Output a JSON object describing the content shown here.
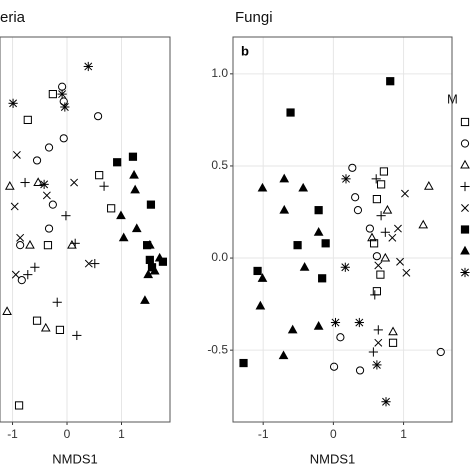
{
  "chart_data": [
    {
      "type": "scatter",
      "title": "eria",
      "xlabel": "NMDS1",
      "xlim": [
        -1.23,
        1.89
      ],
      "ylim": [
        -0.89,
        1.2
      ],
      "xticks": [
        -1,
        0,
        1
      ],
      "grid": true,
      "series": [
        {
          "shape": "square-open",
          "color": "#000000",
          "x": [
            -0.72,
            -0.26,
            -0.35,
            -0.55,
            -0.13,
            0.59,
            -0.88,
            0.81
          ],
          "values": [
            0.75,
            0.89,
            0.07,
            -0.34,
            -0.39,
            0.45,
            -0.8,
            0.27
          ]
        },
        {
          "shape": "circle-open",
          "color": "#000000",
          "x": [
            -0.09,
            -0.06,
            0.57,
            -0.06,
            -0.33,
            -0.55,
            -0.26,
            -0.33,
            -0.86,
            -0.83
          ],
          "values": [
            0.93,
            0.85,
            0.77,
            0.65,
            0.6,
            0.53,
            0.29,
            0.16,
            0.07,
            -0.12
          ]
        },
        {
          "shape": "triangle-open",
          "color": "#000000",
          "x": [
            -1.05,
            -0.53,
            -0.68,
            -0.39,
            -1.1,
            0.09
          ],
          "values": [
            0.39,
            0.41,
            0.07,
            -0.38,
            -0.29,
            0.07
          ]
        },
        {
          "shape": "plus",
          "color": "#000000",
          "x": [
            -0.77,
            0.15,
            -0.02,
            0.51,
            -0.72,
            -0.59,
            -0.18,
            0.18,
            0.68
          ],
          "values": [
            0.41,
            0.08,
            0.23,
            -0.03,
            -0.09,
            -0.05,
            -0.24,
            -0.42,
            0.39
          ]
        },
        {
          "shape": "cross",
          "color": "#000000",
          "x": [
            -0.92,
            -0.96,
            -0.86,
            -0.94,
            0.13,
            0.4,
            -0.37
          ],
          "values": [
            0.56,
            0.28,
            0.11,
            -0.09,
            0.41,
            -0.03,
            0.34
          ]
        },
        {
          "shape": "square-filled",
          "color": "#000000",
          "x": [
            0.92,
            1.21,
            1.54,
            1.47,
            1.52,
            1.56,
            1.76
          ],
          "values": [
            0.52,
            0.55,
            0.29,
            0.07,
            -0.01,
            -0.05,
            -0.02
          ]
        },
        {
          "shape": "triangle-filled",
          "color": "#000000",
          "x": [
            1.23,
            1.25,
            0.99,
            1.04,
            1.28,
            1.52,
            1.7,
            1.49,
            1.43,
            1.61
          ],
          "values": [
            0.45,
            0.37,
            0.23,
            0.11,
            0.16,
            0.07,
            0.0,
            -0.09,
            -0.23,
            -0.07
          ]
        },
        {
          "shape": "asterisk",
          "color": "#000000",
          "x": [
            0.39,
            -0.99,
            -0.09,
            -0.04,
            -0.42
          ],
          "values": [
            1.04,
            0.84,
            0.89,
            0.82,
            0.4
          ]
        }
      ]
    },
    {
      "type": "scatter",
      "title": "Fungi",
      "panel_label": "b",
      "xlabel": "NMDS1",
      "legend_title": "M",
      "xlim": [
        -1.43,
        1.69
      ],
      "ylim": [
        -0.89,
        1.2
      ],
      "xticks": [
        -1,
        0,
        1
      ],
      "yticks": [
        {
          "value": 1.0,
          "label": "1.0"
        },
        0.5,
        {
          "value": 0.0,
          "label": "0.0"
        },
        -0.5
      ],
      "grid": true,
      "series": [
        {
          "shape": "square-open",
          "color": "#000000",
          "x": [
            0.72,
            0.68,
            0.62,
            0.58,
            0.67,
            0.62,
            0.85
          ],
          "values": [
            0.47,
            0.4,
            0.32,
            0.08,
            -0.09,
            -0.18,
            -0.46
          ]
        },
        {
          "shape": "circle-open",
          "color": "#000000",
          "x": [
            0.27,
            0.31,
            0.35,
            0.52,
            0.62,
            0.1,
            0.01,
            0.38,
            1.53
          ],
          "values": [
            0.49,
            0.33,
            0.26,
            0.16,
            0.01,
            -0.43,
            -0.59,
            -0.61,
            -0.51
          ]
        },
        {
          "shape": "triangle-open",
          "color": "#000000",
          "x": [
            0.55,
            0.77,
            1.36,
            1.28,
            0.85,
            0.74
          ],
          "values": [
            0.11,
            0.26,
            0.39,
            0.18,
            -0.4,
            0.0
          ]
        },
        {
          "shape": "plus",
          "color": "#000000",
          "x": [
            0.61,
            0.68,
            0.59,
            0.64,
            0.57,
            0.74
          ],
          "values": [
            0.43,
            0.23,
            -0.2,
            -0.39,
            -0.51,
            0.14
          ]
        },
        {
          "shape": "cross",
          "color": "#000000",
          "x": [
            1.02,
            0.92,
            0.84,
            0.64,
            0.95,
            1.04,
            0.64
          ],
          "values": [
            0.35,
            0.16,
            0.11,
            -0.04,
            -0.02,
            -0.08,
            -0.46
          ]
        },
        {
          "shape": "square-filled",
          "color": "#000000",
          "x": [
            -0.61,
            0.81,
            -0.21,
            -0.51,
            -0.11,
            -1.08,
            -0.16,
            -1.28
          ],
          "values": [
            0.79,
            0.96,
            0.26,
            0.07,
            0.08,
            -0.07,
            -0.11,
            -0.57
          ]
        },
        {
          "shape": "triangle-filled",
          "color": "#000000",
          "x": [
            -1.01,
            -0.7,
            -0.43,
            -0.7,
            -1.01,
            -0.41,
            -1.04,
            -0.58,
            -0.21,
            -0.71,
            -0.21
          ],
          "values": [
            0.38,
            0.43,
            0.38,
            0.26,
            -0.11,
            -0.05,
            -0.26,
            -0.39,
            -0.37,
            -0.53,
            0.14
          ]
        },
        {
          "shape": "asterisk",
          "color": "#000000",
          "x": [
            0.18,
            0.17,
            0.03,
            0.37,
            0.62,
            0.75
          ],
          "values": [
            0.43,
            -0.05,
            -0.35,
            -0.35,
            -0.58,
            -0.78
          ]
        }
      ]
    }
  ]
}
